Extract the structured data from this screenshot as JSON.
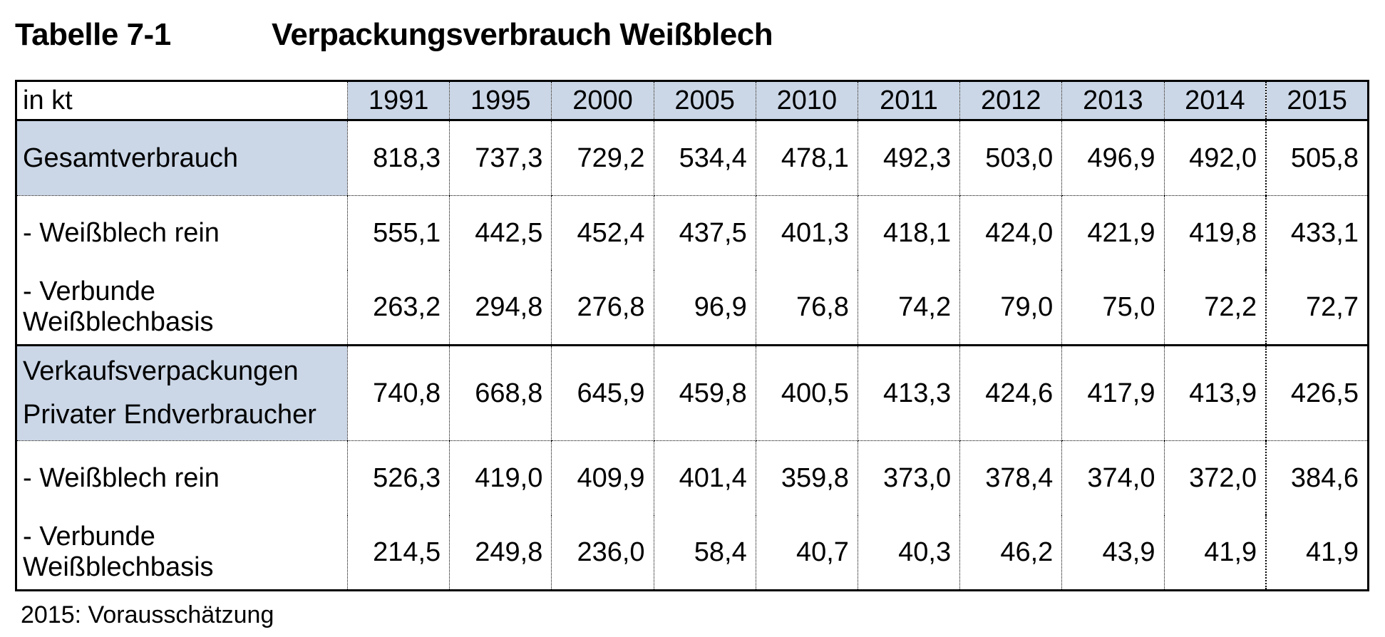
{
  "title": {
    "number": "Tabelle 7-1",
    "caption": "Verpackungsverbrauch Weißblech"
  },
  "table": {
    "unit_label": "in kt",
    "years": [
      "1991",
      "1995",
      "2000",
      "2005",
      "2010",
      "2011",
      "2012",
      "2013",
      "2014",
      "2015"
    ],
    "rows": [
      {
        "label": "Gesamtverbrauch",
        "values": [
          "818,3",
          "737,3",
          "729,2",
          "534,4",
          "478,1",
          "492,3",
          "503,0",
          "496,9",
          "492,0",
          "505,8"
        ]
      },
      {
        "label": "- Weißblech rein",
        "values": [
          "555,1",
          "442,5",
          "452,4",
          "437,5",
          "401,3",
          "418,1",
          "424,0",
          "421,9",
          "419,8",
          "433,1"
        ]
      },
      {
        "label": "- Verbunde Weißblechbasis",
        "values": [
          "263,2",
          "294,8",
          "276,8",
          "96,9",
          "76,8",
          "74,2",
          "79,0",
          "75,0",
          "72,2",
          "72,7"
        ]
      },
      {
        "label_lines": [
          "Verkaufsverpackungen",
          "Privater Endverbraucher"
        ],
        "values": [
          "740,8",
          "668,8",
          "645,9",
          "459,8",
          "400,5",
          "413,3",
          "424,6",
          "417,9",
          "413,9",
          "426,5"
        ]
      },
      {
        "label": "- Weißblech rein",
        "values": [
          "526,3",
          "419,0",
          "409,9",
          "401,4",
          "359,8",
          "373,0",
          "378,4",
          "374,0",
          "372,0",
          "384,6"
        ]
      },
      {
        "label": "- Verbunde Weißblechbasis",
        "values": [
          "214,5",
          "249,8",
          "236,0",
          "58,4",
          "40,7",
          "40,3",
          "46,2",
          "43,9",
          "41,9",
          "41,9"
        ]
      }
    ]
  },
  "footnote": "2015: Vorausschätzung",
  "colors": {
    "header_fill": "#CBD7E7",
    "border": "#000000",
    "text": "#000000",
    "background": "#FFFFFF"
  }
}
